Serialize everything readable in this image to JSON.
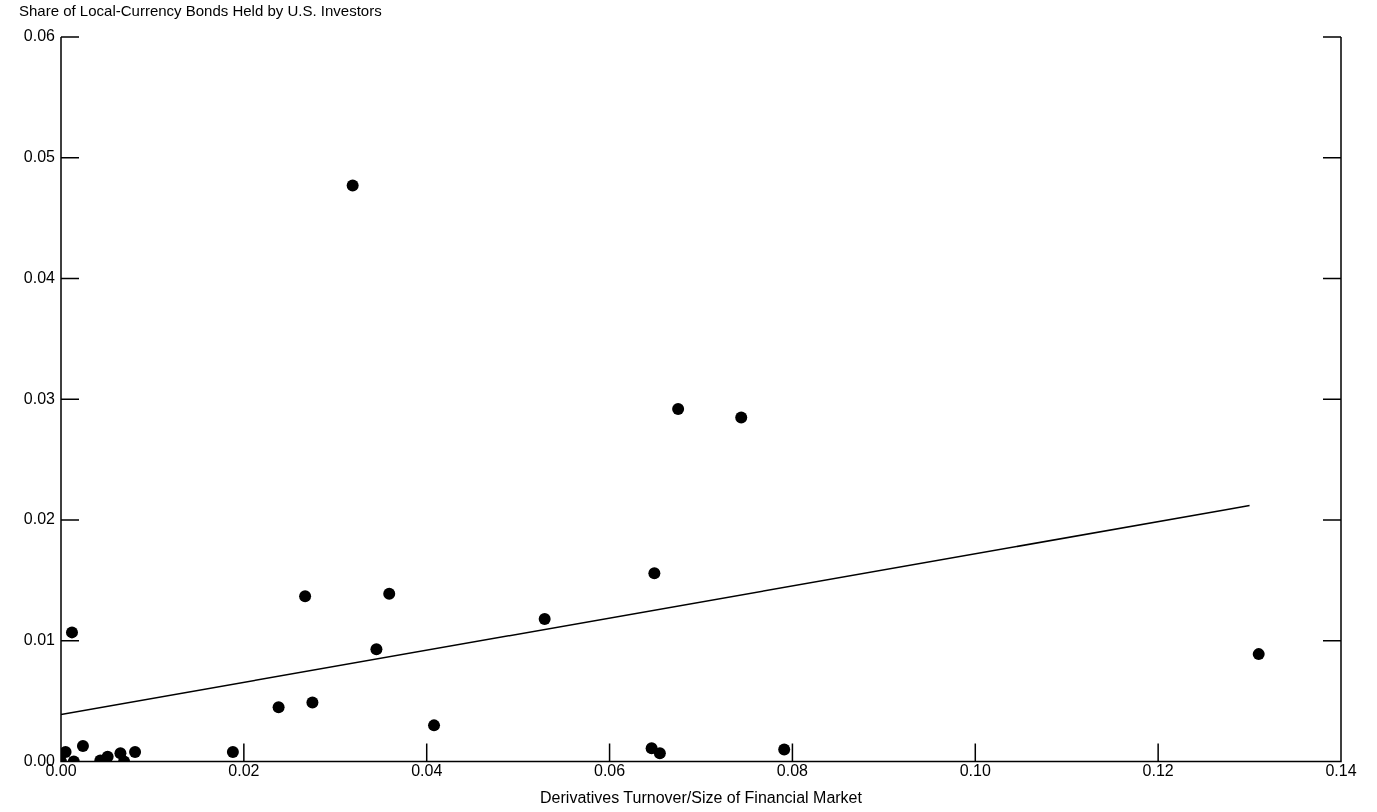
{
  "chart_data": {
    "type": "scatter",
    "ylabel": "Share of Local-Currency Bonds Held by U.S. Investors",
    "xlabel": "Derivatives Turnover/Size of Financial Market",
    "xlim": [
      0,
      0.14
    ],
    "ylim": [
      0,
      0.06
    ],
    "xticks": [
      {
        "value": 0,
        "label": "0.00"
      },
      {
        "value": 0.02,
        "label": "0.02"
      },
      {
        "value": 0.04,
        "label": "0.04"
      },
      {
        "value": 0.06,
        "label": "0.06"
      },
      {
        "value": 0.08,
        "label": "0.08"
      },
      {
        "value": 0.1,
        "label": "0.10"
      },
      {
        "value": 0.12,
        "label": "0.12"
      },
      {
        "value": 0.14,
        "label": "0.14"
      }
    ],
    "yticks": [
      {
        "value": 0,
        "label": "0.00"
      },
      {
        "value": 0.01,
        "label": "0.01"
      },
      {
        "value": 0.02,
        "label": "0.02"
      },
      {
        "value": 0.03,
        "label": "0.03"
      },
      {
        "value": 0.04,
        "label": "0.04"
      },
      {
        "value": 0.05,
        "label": "0.05"
      },
      {
        "value": 0.06,
        "label": "0.06"
      }
    ],
    "grid": false,
    "legend": false,
    "marker": "circle",
    "series": [
      {
        "color": "#000000",
        "x": [
          0,
          0.0005,
          0.0012,
          0.0014,
          0.0024,
          0.0043,
          0.0051,
          0.0065,
          0.0069,
          0.0081,
          0.0188,
          0.0238,
          0.0267,
          0.0275,
          0.0319,
          0.0345,
          0.0359,
          0.0408,
          0.0529,
          0.0646,
          0.0649,
          0.0655,
          0.0675,
          0.0744,
          0.0791,
          0.131
        ],
        "values": [
          0,
          0.0008,
          0.0107,
          0,
          0.0013,
          0.0001,
          0.0004,
          0.0007,
          0,
          0.0008,
          0.0008,
          0.0045,
          0.0137,
          0.0049,
          0.0477,
          0.0093,
          0.0139,
          0.003,
          0.0118,
          0.0011,
          0.0156,
          0.0007,
          0.0292,
          0.0285,
          0.001,
          0.0089
        ]
      },
      {
        "type": "line",
        "color": "#000000",
        "marker": "none",
        "line_style": "solid",
        "x": [
          0,
          0.13
        ],
        "values": [
          0.0039,
          0.0212
        ]
      }
    ]
  }
}
